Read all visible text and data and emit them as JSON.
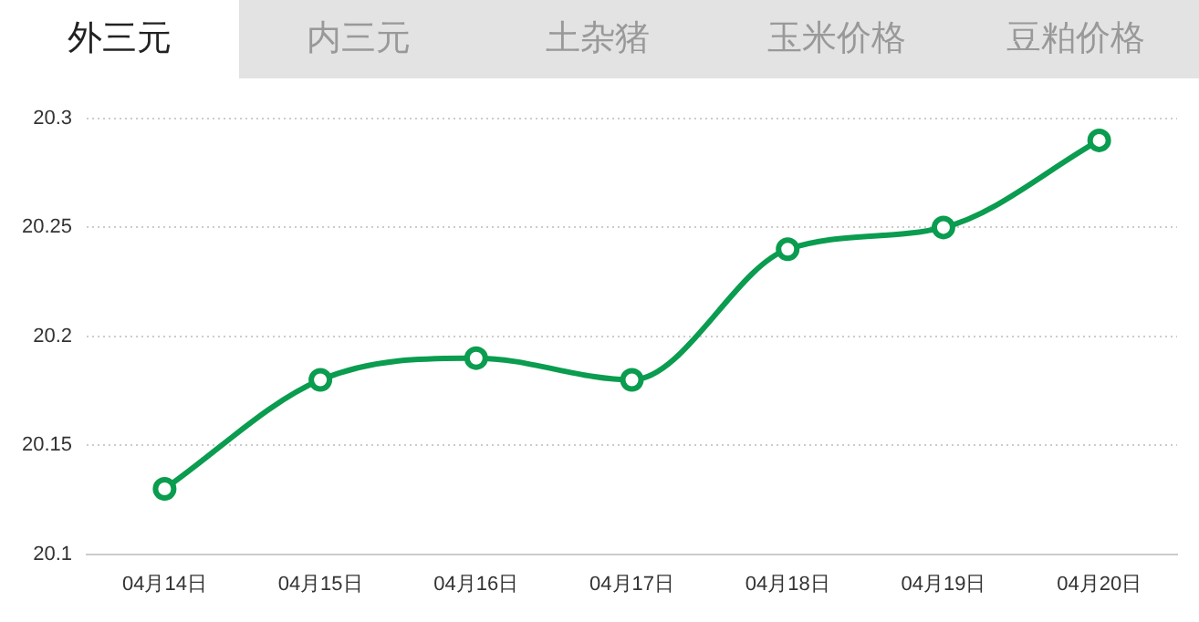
{
  "chart_data": {
    "type": "line",
    "title": "外三元",
    "annotations": [
      "内三元",
      "土杂猪",
      "玉米价格",
      "豆粕价格"
    ],
    "categories": [
      "04月14日",
      "04月15日",
      "04月16日",
      "04月17日",
      "04月18日",
      "04月19日",
      "04月20日"
    ],
    "series": [
      {
        "color": "#0a9c4f",
        "values": [
          20.13,
          20.18,
          20.19,
          20.18,
          20.24,
          20.25,
          20.29
        ]
      }
    ],
    "ylim": [
      20.1,
      20.3
    ],
    "yticks": [
      20.1,
      20.15,
      20.2,
      20.25,
      20.3
    ],
    "grid": "y",
    "marker": "circle",
    "line_style": "solid"
  }
}
